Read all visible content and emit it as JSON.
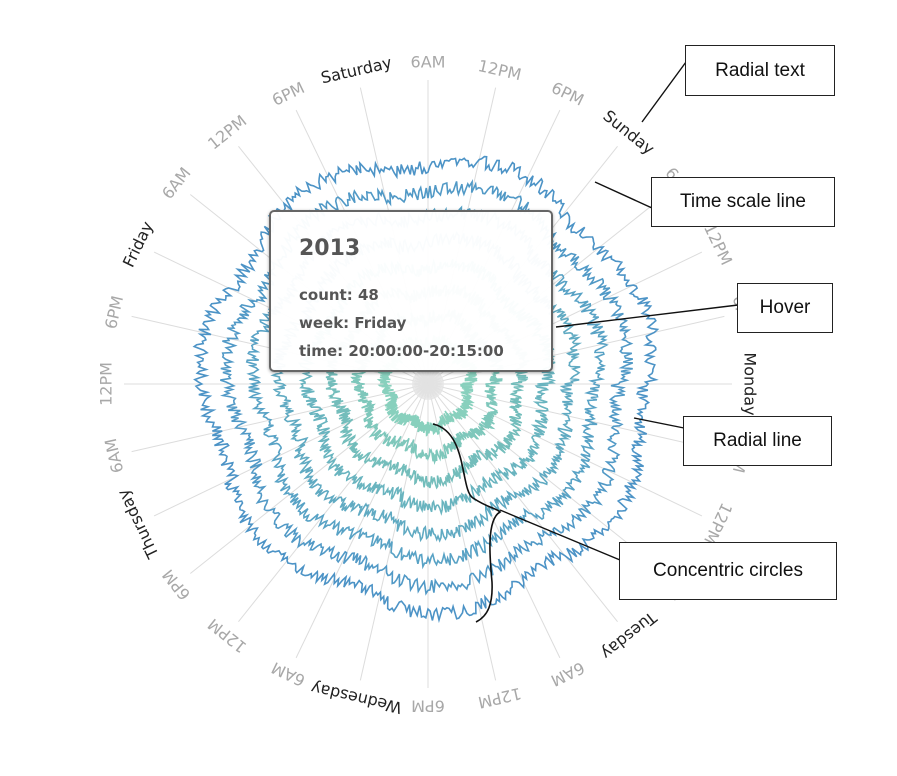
{
  "chart_data": {
    "type": "radial-line",
    "days": [
      "Monday",
      "Tuesday",
      "Wednesday",
      "Thursday",
      "Friday",
      "Saturday",
      "Sunday"
    ],
    "time_ticks": [
      "6AM",
      "12PM",
      "6PM"
    ],
    "series": [
      {
        "key": "r1",
        "level": 1.1,
        "color": "#88d0bd"
      },
      {
        "key": "r2",
        "level": 2.0,
        "color": "#7ec7bb"
      },
      {
        "key": "r3",
        "level": 2.9,
        "color": "#73bdbb"
      },
      {
        "key": "r4",
        "level": 3.8,
        "color": "#69b4bf"
      },
      {
        "key": "r5",
        "level": 4.7,
        "color": "#60aac2"
      },
      {
        "key": "r6",
        "level": 5.6,
        "color": "#58a2c5"
      },
      {
        "key": "r7",
        "level": 6.5,
        "color": "#5199c6"
      },
      {
        "key": "r8",
        "level": 7.4,
        "color": "#4c93c6"
      }
    ],
    "tooltip": {
      "title": "2013",
      "count": "count: 48",
      "week": "week: Friday",
      "time": "time: 20:00:00-20:15:00"
    }
  },
  "callouts": {
    "radial_text": "Radial text",
    "time_scale_line": "Time scale line",
    "hover": "Hover",
    "radial_line": "Radial line",
    "concentric_circles": "Concentric circles"
  }
}
